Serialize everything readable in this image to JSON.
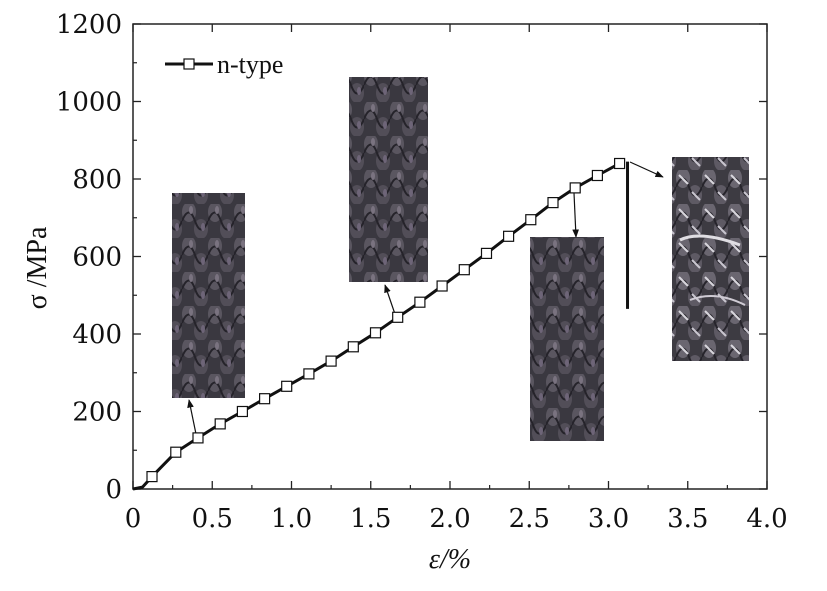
{
  "chart_data": {
    "type": "line",
    "title": "",
    "xlabel": "ε/%",
    "ylabel": "σ /MPa",
    "xlim": [
      0,
      4.0
    ],
    "ylim": [
      0,
      1200
    ],
    "x_ticks": [
      "0",
      "0.5",
      "1.0",
      "1.5",
      "2.0",
      "2.5",
      "3.0",
      "3.5",
      "4.0"
    ],
    "y_ticks": [
      "0",
      "200",
      "400",
      "600",
      "800",
      "1000",
      "1200"
    ],
    "grid": false,
    "legend": "top-left",
    "series": [
      {
        "name": "n-type",
        "color": "#111111",
        "marker": "open-square",
        "x": [
          0.0,
          0.06,
          0.12,
          0.27,
          0.41,
          0.55,
          0.69,
          0.83,
          0.97,
          1.11,
          1.25,
          1.39,
          1.53,
          1.67,
          1.81,
          1.95,
          2.09,
          2.23,
          2.37,
          2.51,
          2.65,
          2.79,
          2.93,
          3.07,
          3.1
        ],
        "y": [
          0,
          5,
          32,
          95,
          132,
          168,
          200,
          233,
          265,
          297,
          330,
          367,
          403,
          443,
          482,
          524,
          566,
          608,
          652,
          695,
          739,
          777,
          809,
          840,
          840
        ],
        "drop": {
          "x": 3.12,
          "y_from": 845,
          "y_to": 465
        }
      }
    ],
    "insets": [
      {
        "name": "specimen-photo-1",
        "pointer_to": {
          "x": 0.38,
          "y": 137
        }
      },
      {
        "name": "specimen-photo-2",
        "pointer_to": {
          "x": 1.65,
          "y": 443
        }
      },
      {
        "name": "specimen-photo-3",
        "pointer_to": {
          "x": 2.8,
          "y": 770
        }
      },
      {
        "name": "specimen-photo-4",
        "pointer_to": {
          "x": 3.07,
          "y": 840
        }
      }
    ]
  }
}
